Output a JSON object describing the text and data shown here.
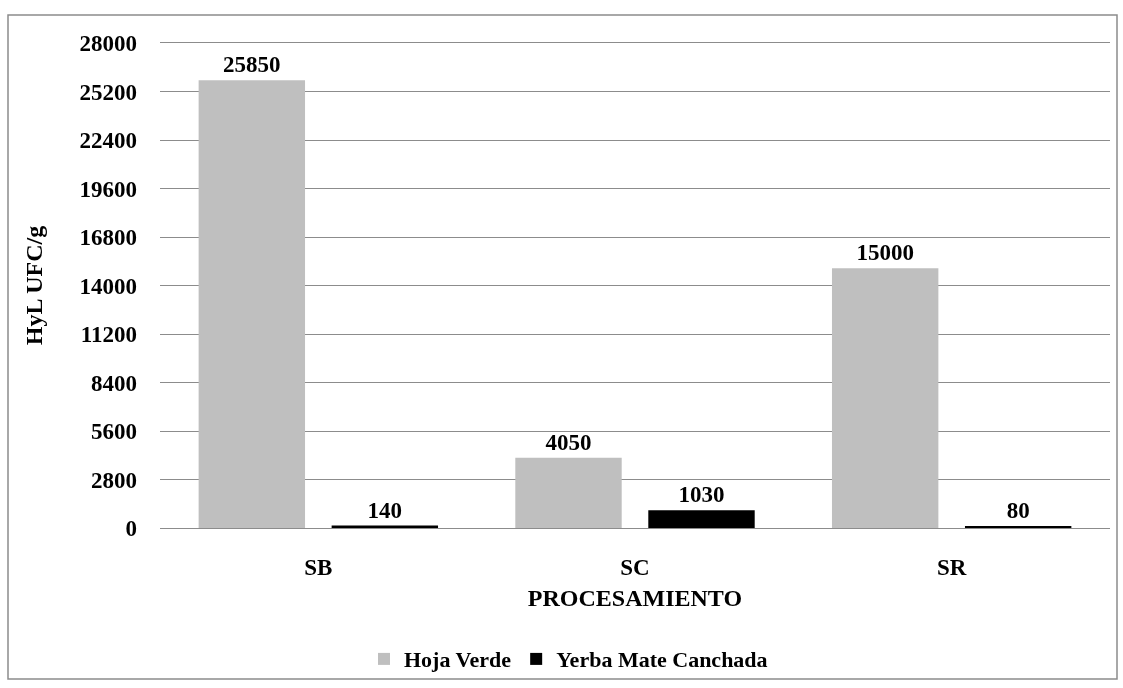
{
  "chart_data": {
    "type": "bar",
    "xlabel": "PROCESAMIENTO",
    "ylabel": "HyL UFC/g",
    "categories": [
      "SB",
      "SC",
      "SR"
    ],
    "series": [
      {
        "name": "Hoja Verde",
        "color": "#bfbfbf",
        "values": [
          25850,
          4050,
          15000
        ]
      },
      {
        "name": "Yerba Mate Canchada",
        "color": "#000000",
        "values": [
          140,
          1030,
          80
        ]
      }
    ],
    "ylim": [
      0,
      28000
    ],
    "yticks": [
      0,
      2800,
      5600,
      8400,
      11200,
      14000,
      16800,
      19600,
      22400,
      25200,
      28000
    ],
    "grid": "y",
    "legend": "bottom",
    "data_labels": true
  }
}
